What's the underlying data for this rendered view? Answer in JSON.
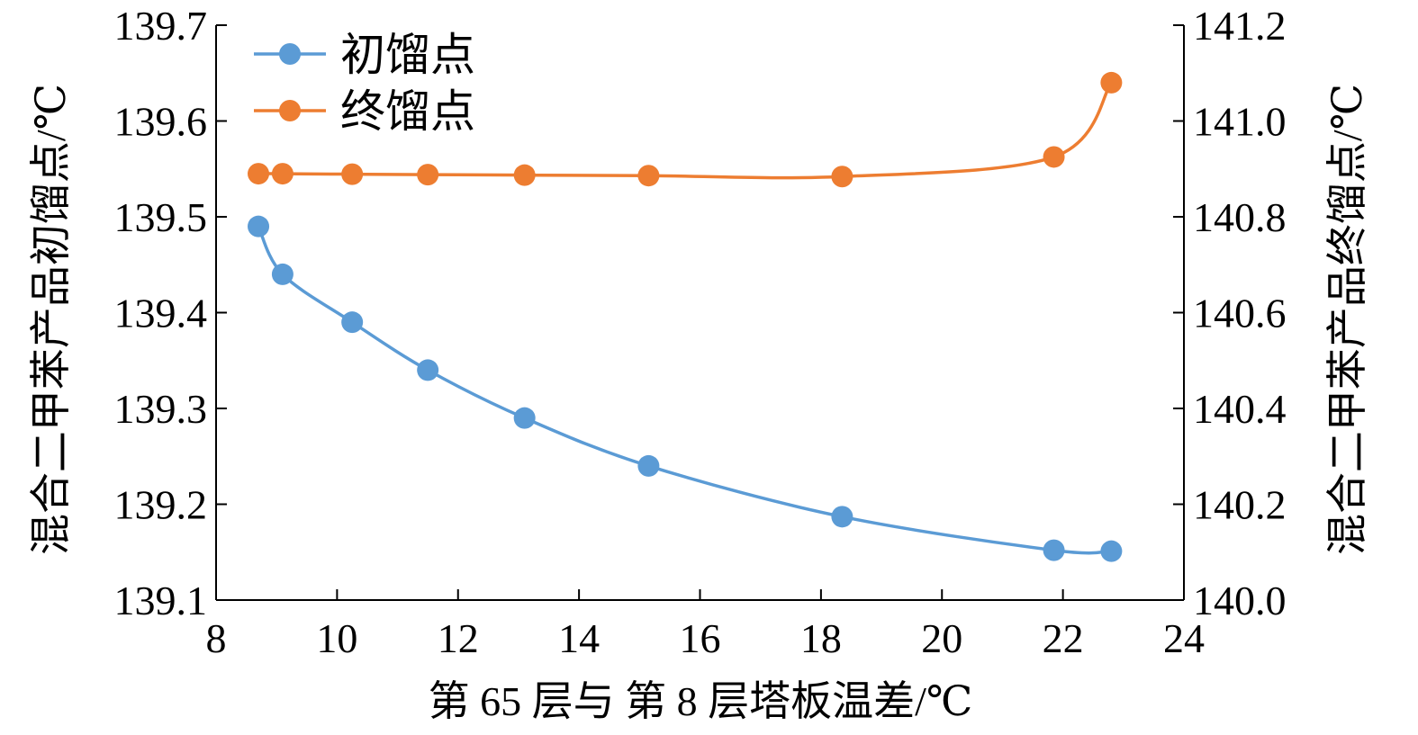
{
  "chart_data": {
    "type": "line",
    "xlabel": "第 65 层与 第 8 层塔板温差/℃",
    "ylabel_left": "混合二甲苯产品初馏点/℃",
    "ylabel_right": "混合二甲苯产品终馏点/℃",
    "xlim": [
      8,
      24
    ],
    "ylim_left": [
      139.1,
      139.7
    ],
    "ylim_right": [
      140.0,
      141.2
    ],
    "x_ticks": [
      "8",
      "10",
      "12",
      "14",
      "16",
      "18",
      "20",
      "22",
      "24"
    ],
    "y_left_ticks": [
      "139.1",
      "139.2",
      "139.3",
      "139.4",
      "139.5",
      "139.6",
      "139.7"
    ],
    "y_right_ticks": [
      "140.0",
      "140.2",
      "140.4",
      "140.6",
      "140.8",
      "141.0",
      "141.2"
    ],
    "grid": false,
    "legend_position": "top-left",
    "series": [
      {
        "name": "初馏点",
        "axis": "left",
        "color": "#5B9BD5",
        "x": [
          8.7,
          9.1,
          10.25,
          11.5,
          13.1,
          15.15,
          18.35,
          21.85,
          22.8
        ],
        "y": [
          139.49,
          139.44,
          139.39,
          139.34,
          139.29,
          139.24,
          139.187,
          139.152,
          139.151
        ]
      },
      {
        "name": "终馏点",
        "axis": "right",
        "color": "#ED7D31",
        "x": [
          8.7,
          9.1,
          10.25,
          11.5,
          13.1,
          15.15,
          18.35,
          21.85,
          22.8
        ],
        "y": [
          140.89,
          140.89,
          140.889,
          140.888,
          140.887,
          140.886,
          140.884,
          140.925,
          141.08
        ]
      }
    ]
  }
}
